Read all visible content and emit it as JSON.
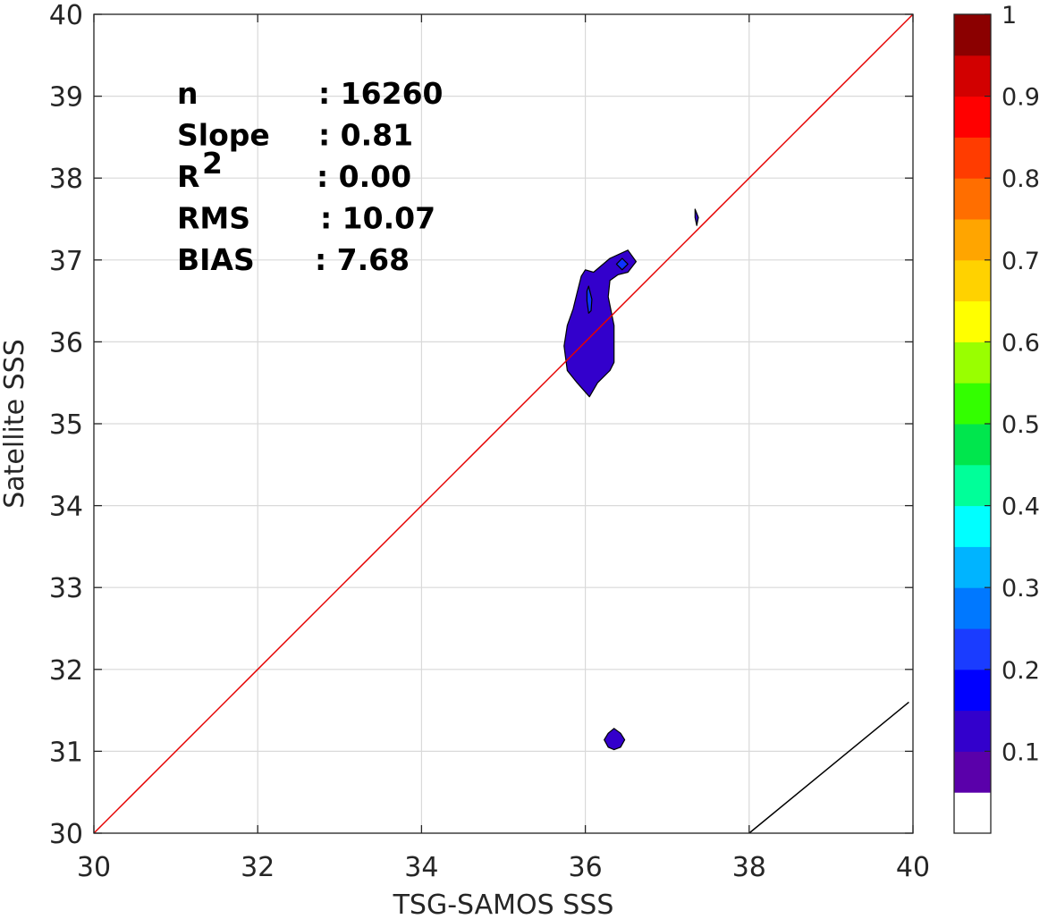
{
  "chart_data": {
    "type": "contour",
    "xlabel": "TSG-SAMOS SSS",
    "ylabel": "Satellite SSS",
    "xlim": [
      30,
      40
    ],
    "ylim": [
      30,
      40
    ],
    "x_ticks": [
      "30",
      "32",
      "34",
      "36",
      "38",
      "40"
    ],
    "y_ticks": [
      "30",
      "31",
      "32",
      "33",
      "34",
      "35",
      "36",
      "37",
      "38",
      "39",
      "40"
    ],
    "grid": true,
    "stats": [
      {
        "name": "n",
        "sup": "",
        "value": ": 16260"
      },
      {
        "name": "Slope",
        "sup": "",
        "value": ": 0.81"
      },
      {
        "name": "R",
        "sup": "2",
        "value": ": 0.00"
      },
      {
        "name": "RMS",
        "sup": "",
        "value": ": 10.07"
      },
      {
        "name": "BIAS",
        "sup": "",
        "value": ": 7.68"
      }
    ],
    "lines": [
      {
        "role": "one-to-one",
        "color": "#e60000",
        "x": [
          30,
          40
        ],
        "y": [
          30,
          40
        ]
      },
      {
        "role": "fit",
        "color": "#000000",
        "x": [
          38.0,
          39.95
        ],
        "y": [
          30.0,
          31.6
        ]
      }
    ],
    "contour_regions": [
      {
        "level": 0.1,
        "color": "#3300cc",
        "x": [
          36.0,
          36.1,
          36.3,
          36.52,
          36.62,
          36.52,
          36.4,
          36.3,
          36.28,
          36.35,
          36.35,
          36.3,
          36.15,
          36.05,
          35.9,
          35.78,
          35.74,
          35.78,
          35.85,
          35.9,
          35.95,
          36.0
        ],
        "y": [
          36.88,
          36.85,
          37.02,
          37.12,
          36.98,
          36.85,
          36.82,
          36.75,
          36.55,
          36.2,
          35.75,
          35.65,
          35.5,
          35.33,
          35.5,
          35.65,
          35.95,
          36.2,
          36.4,
          36.6,
          36.8,
          36.88
        ]
      },
      {
        "level": 0.1,
        "color": "#3300cc",
        "x": [
          36.35,
          36.43,
          36.48,
          36.43,
          36.35,
          36.28,
          36.23,
          36.28,
          36.35
        ],
        "y": [
          31.28,
          31.22,
          31.14,
          31.05,
          31.02,
          31.05,
          31.14,
          31.22,
          31.28
        ]
      },
      {
        "level": 0.1,
        "color": "#3300cc",
        "x": [
          37.34,
          37.38,
          37.36,
          37.34
        ],
        "y": [
          37.62,
          37.52,
          37.42,
          37.52
        ]
      },
      {
        "level": 0.15,
        "color": "#0d33ff",
        "x": [
          36.04,
          36.08,
          36.07,
          36.04,
          36.02,
          36.02,
          36.04
        ],
        "y": [
          36.68,
          36.52,
          36.38,
          36.35,
          36.5,
          36.62,
          36.68
        ]
      },
      {
        "level": 0.15,
        "color": "#0d33ff",
        "x": [
          36.45,
          36.52,
          36.45,
          36.38,
          36.45
        ],
        "y": [
          37.02,
          36.95,
          36.88,
          36.95,
          37.02
        ]
      }
    ],
    "colorbar": {
      "ticks": [
        "0.1",
        "0.2",
        "0.3",
        "0.4",
        "0.5",
        "0.6",
        "0.7",
        "0.8",
        "0.9",
        "1"
      ],
      "tick_values": [
        0.1,
        0.2,
        0.3,
        0.4,
        0.5,
        0.6,
        0.7,
        0.8,
        0.9,
        1.0
      ],
      "range": [
        0,
        1
      ],
      "colors": [
        "#ffffff",
        "#5a00aa",
        "#3300cc",
        "#0000ff",
        "#1a3cff",
        "#0078ff",
        "#00b4ff",
        "#00ffff",
        "#00ff99",
        "#00e64d",
        "#33ff00",
        "#99ff00",
        "#ffff00",
        "#ffd200",
        "#ffa500",
        "#ff6e00",
        "#ff3c00",
        "#ff0000",
        "#d20000",
        "#8b0000"
      ]
    }
  }
}
